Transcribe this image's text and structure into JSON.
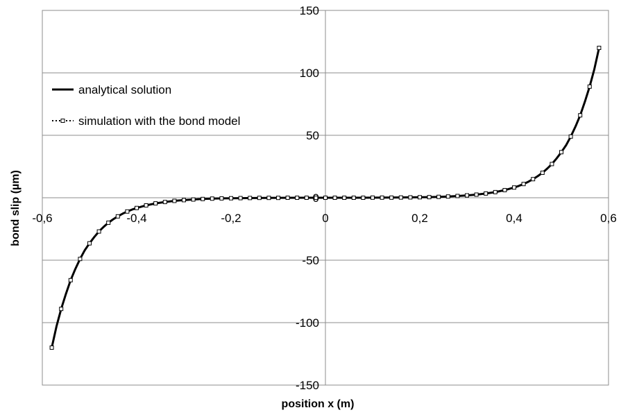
{
  "chart_data": {
    "type": "line",
    "title": "",
    "xlabel": "position x (m)",
    "ylabel": "bond slip (µm)",
    "xlim": [
      -0.6,
      0.6
    ],
    "ylim": [
      -150,
      150
    ],
    "x_ticks": [
      -0.6,
      -0.4,
      -0.2,
      0,
      0.2,
      0.4,
      0.6
    ],
    "x_tick_labels": [
      "-0,6",
      "-0,4",
      "-0,2",
      "0",
      "0,2",
      "0,4",
      "0,6"
    ],
    "y_ticks": [
      -150,
      -100,
      -50,
      0,
      50,
      100,
      150
    ],
    "y_tick_labels": [
      "-150",
      "-100",
      "-50",
      "0",
      "50",
      "100",
      "150"
    ],
    "grid": true,
    "legend_position": "top-left",
    "series": [
      {
        "name": "analytical solution",
        "style": "solid",
        "color": "#000000",
        "x": [
          -0.58,
          -0.57,
          -0.56,
          -0.55,
          -0.54,
          -0.53,
          -0.52,
          -0.51,
          -0.5,
          -0.49,
          -0.48,
          -0.47,
          -0.46,
          -0.45,
          -0.44,
          -0.43,
          -0.42,
          -0.41,
          -0.4,
          -0.38,
          -0.36,
          -0.34,
          -0.32,
          -0.3,
          -0.28,
          -0.26,
          -0.24,
          -0.22,
          -0.2,
          -0.15,
          -0.1,
          -0.05,
          0,
          0.05,
          0.1,
          0.15,
          0.2,
          0.22,
          0.24,
          0.26,
          0.28,
          0.3,
          0.32,
          0.34,
          0.36,
          0.38,
          0.4,
          0.41,
          0.42,
          0.43,
          0.44,
          0.45,
          0.46,
          0.47,
          0.48,
          0.49,
          0.5,
          0.51,
          0.52,
          0.53,
          0.54,
          0.55,
          0.56,
          0.57,
          0.58
        ],
        "y": [
          -120,
          -103,
          -89,
          -77,
          -66,
          -57,
          -49,
          -42,
          -36.5,
          -31.5,
          -27,
          -23.3,
          -20,
          -17.3,
          -14.9,
          -12.8,
          -11,
          -9.5,
          -8.2,
          -6.1,
          -4.5,
          -3.4,
          -2.5,
          -1.9,
          -1.4,
          -1,
          -0.7,
          -0.5,
          -0.4,
          -0.2,
          -0.1,
          0,
          0,
          0,
          0.1,
          0.2,
          0.4,
          0.5,
          0.7,
          1,
          1.4,
          1.9,
          2.5,
          3.4,
          4.5,
          6.1,
          8.2,
          9.5,
          11,
          12.8,
          14.9,
          17.3,
          20,
          23.3,
          27,
          31.5,
          36.5,
          42,
          49,
          57,
          66,
          77,
          89,
          103,
          120
        ]
      },
      {
        "name": "simulation with the bond model",
        "style": "dotted-markers",
        "color": "#000000",
        "marker": "open-square",
        "x": [
          -0.58,
          -0.56,
          -0.54,
          -0.52,
          -0.5,
          -0.48,
          -0.46,
          -0.44,
          -0.42,
          -0.4,
          -0.38,
          -0.36,
          -0.34,
          -0.32,
          -0.3,
          -0.28,
          -0.26,
          -0.24,
          -0.22,
          -0.2,
          -0.18,
          -0.16,
          -0.14,
          -0.12,
          -0.1,
          -0.08,
          -0.06,
          -0.04,
          -0.02,
          0,
          0.02,
          0.04,
          0.06,
          0.08,
          0.1,
          0.12,
          0.14,
          0.16,
          0.18,
          0.2,
          0.22,
          0.24,
          0.26,
          0.28,
          0.3,
          0.32,
          0.34,
          0.36,
          0.38,
          0.4,
          0.42,
          0.44,
          0.46,
          0.48,
          0.5,
          0.52,
          0.54,
          0.56,
          0.58
        ],
        "y": [
          -120,
          -89,
          -66,
          -49,
          -36.5,
          -27,
          -20,
          -14.9,
          -11,
          -8.2,
          -6.1,
          -4.5,
          -3.4,
          -2.5,
          -1.9,
          -1.4,
          -1,
          -0.7,
          -0.5,
          -0.4,
          -0.3,
          -0.2,
          -0.1,
          -0.1,
          -0.1,
          0,
          0,
          0,
          0,
          0,
          0,
          0,
          0,
          0,
          0.1,
          0.1,
          0.1,
          0.2,
          0.3,
          0.4,
          0.5,
          0.7,
          1,
          1.4,
          1.9,
          2.5,
          3.4,
          4.5,
          6.1,
          8.2,
          11,
          14.9,
          20,
          27,
          36.5,
          49,
          66,
          89,
          120
        ]
      }
    ]
  }
}
